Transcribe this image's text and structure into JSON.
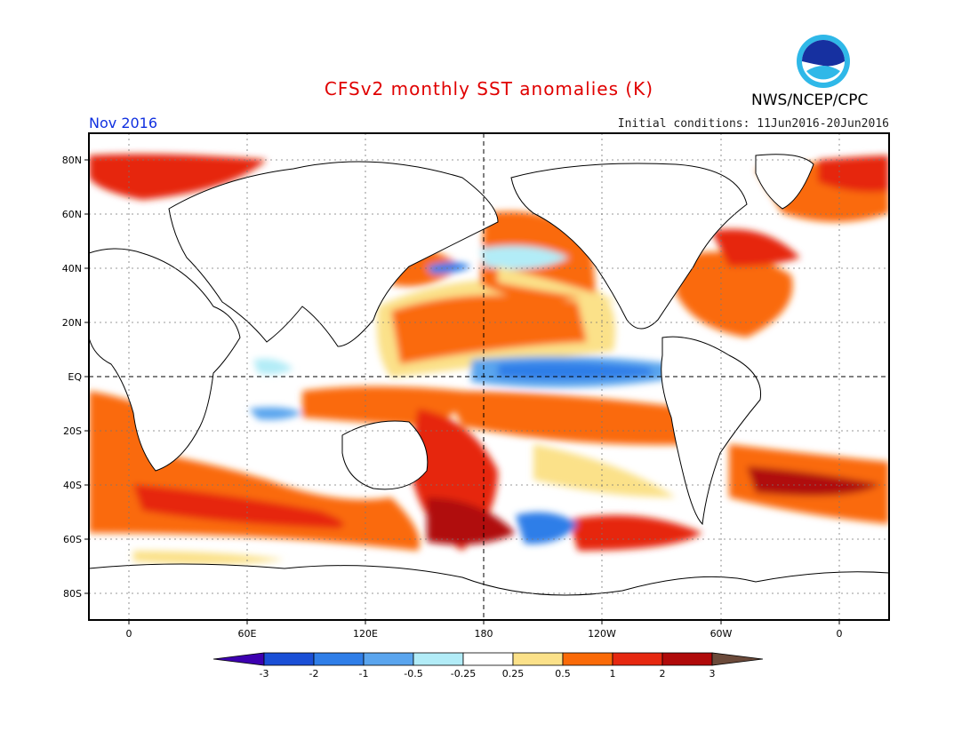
{
  "header": {
    "title": "CFSv2 monthly SST anomalies (K)",
    "organization": "NWS/NCEP/CPC",
    "month": "Nov 2016",
    "initial_conditions": "Initial conditions: 11Jun2016-20Jun2016",
    "logo_text": "noaa"
  },
  "map": {
    "projection": "equirectangular",
    "lon_labels": [
      "0",
      "60E",
      "120E",
      "180",
      "120W",
      "60W",
      "0"
    ],
    "lat_labels": [
      "80N",
      "60N",
      "40N",
      "20N",
      "EQ",
      "20S",
      "40S",
      "60S",
      "80S"
    ]
  },
  "colorbar": {
    "labels": [
      "-3",
      "-2",
      "-1",
      "-0.5",
      "-0.25",
      "0.25",
      "0.5",
      "1",
      "2",
      "3"
    ],
    "colors": [
      "#3d00b0",
      "#1a4fd6",
      "#2f7ee8",
      "#5aa5ee",
      "#b2ecf7",
      "#ffffff",
      "#fbe189",
      "#fa6a08",
      "#e62810",
      "#b00a0a",
      "#6b4a3a"
    ]
  },
  "anomaly_legend_colors": {
    "strong_negative": "#1a4fd6",
    "negative": "#5aa5ee",
    "weak_negative": "#b2ecf7",
    "weak_positive": "#fbe189",
    "positive": "#fa6a08",
    "strong_positive": "#e62810",
    "very_strong_positive": "#b00a0a"
  }
}
